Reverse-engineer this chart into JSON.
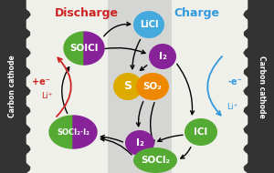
{
  "bg_color": "#f0f0eb",
  "carbon_color": "#333333",
  "separator_color": "#cccccc",
  "green_color": "#55aa33",
  "purple_color": "#882299",
  "orange_color": "#ee8800",
  "yellow_orange": "#ddaa00",
  "blue_light_color": "#44aadd",
  "discharge_color": "#cc2222",
  "charge_color": "#3399dd",
  "arrow_color": "#111111",
  "title_discharge": "Discharge",
  "title_charge": "Charge",
  "label_carbon": "Carbon cathode",
  "fig_w": 3.0,
  "fig_h": 1.9,
  "dpi": 100
}
